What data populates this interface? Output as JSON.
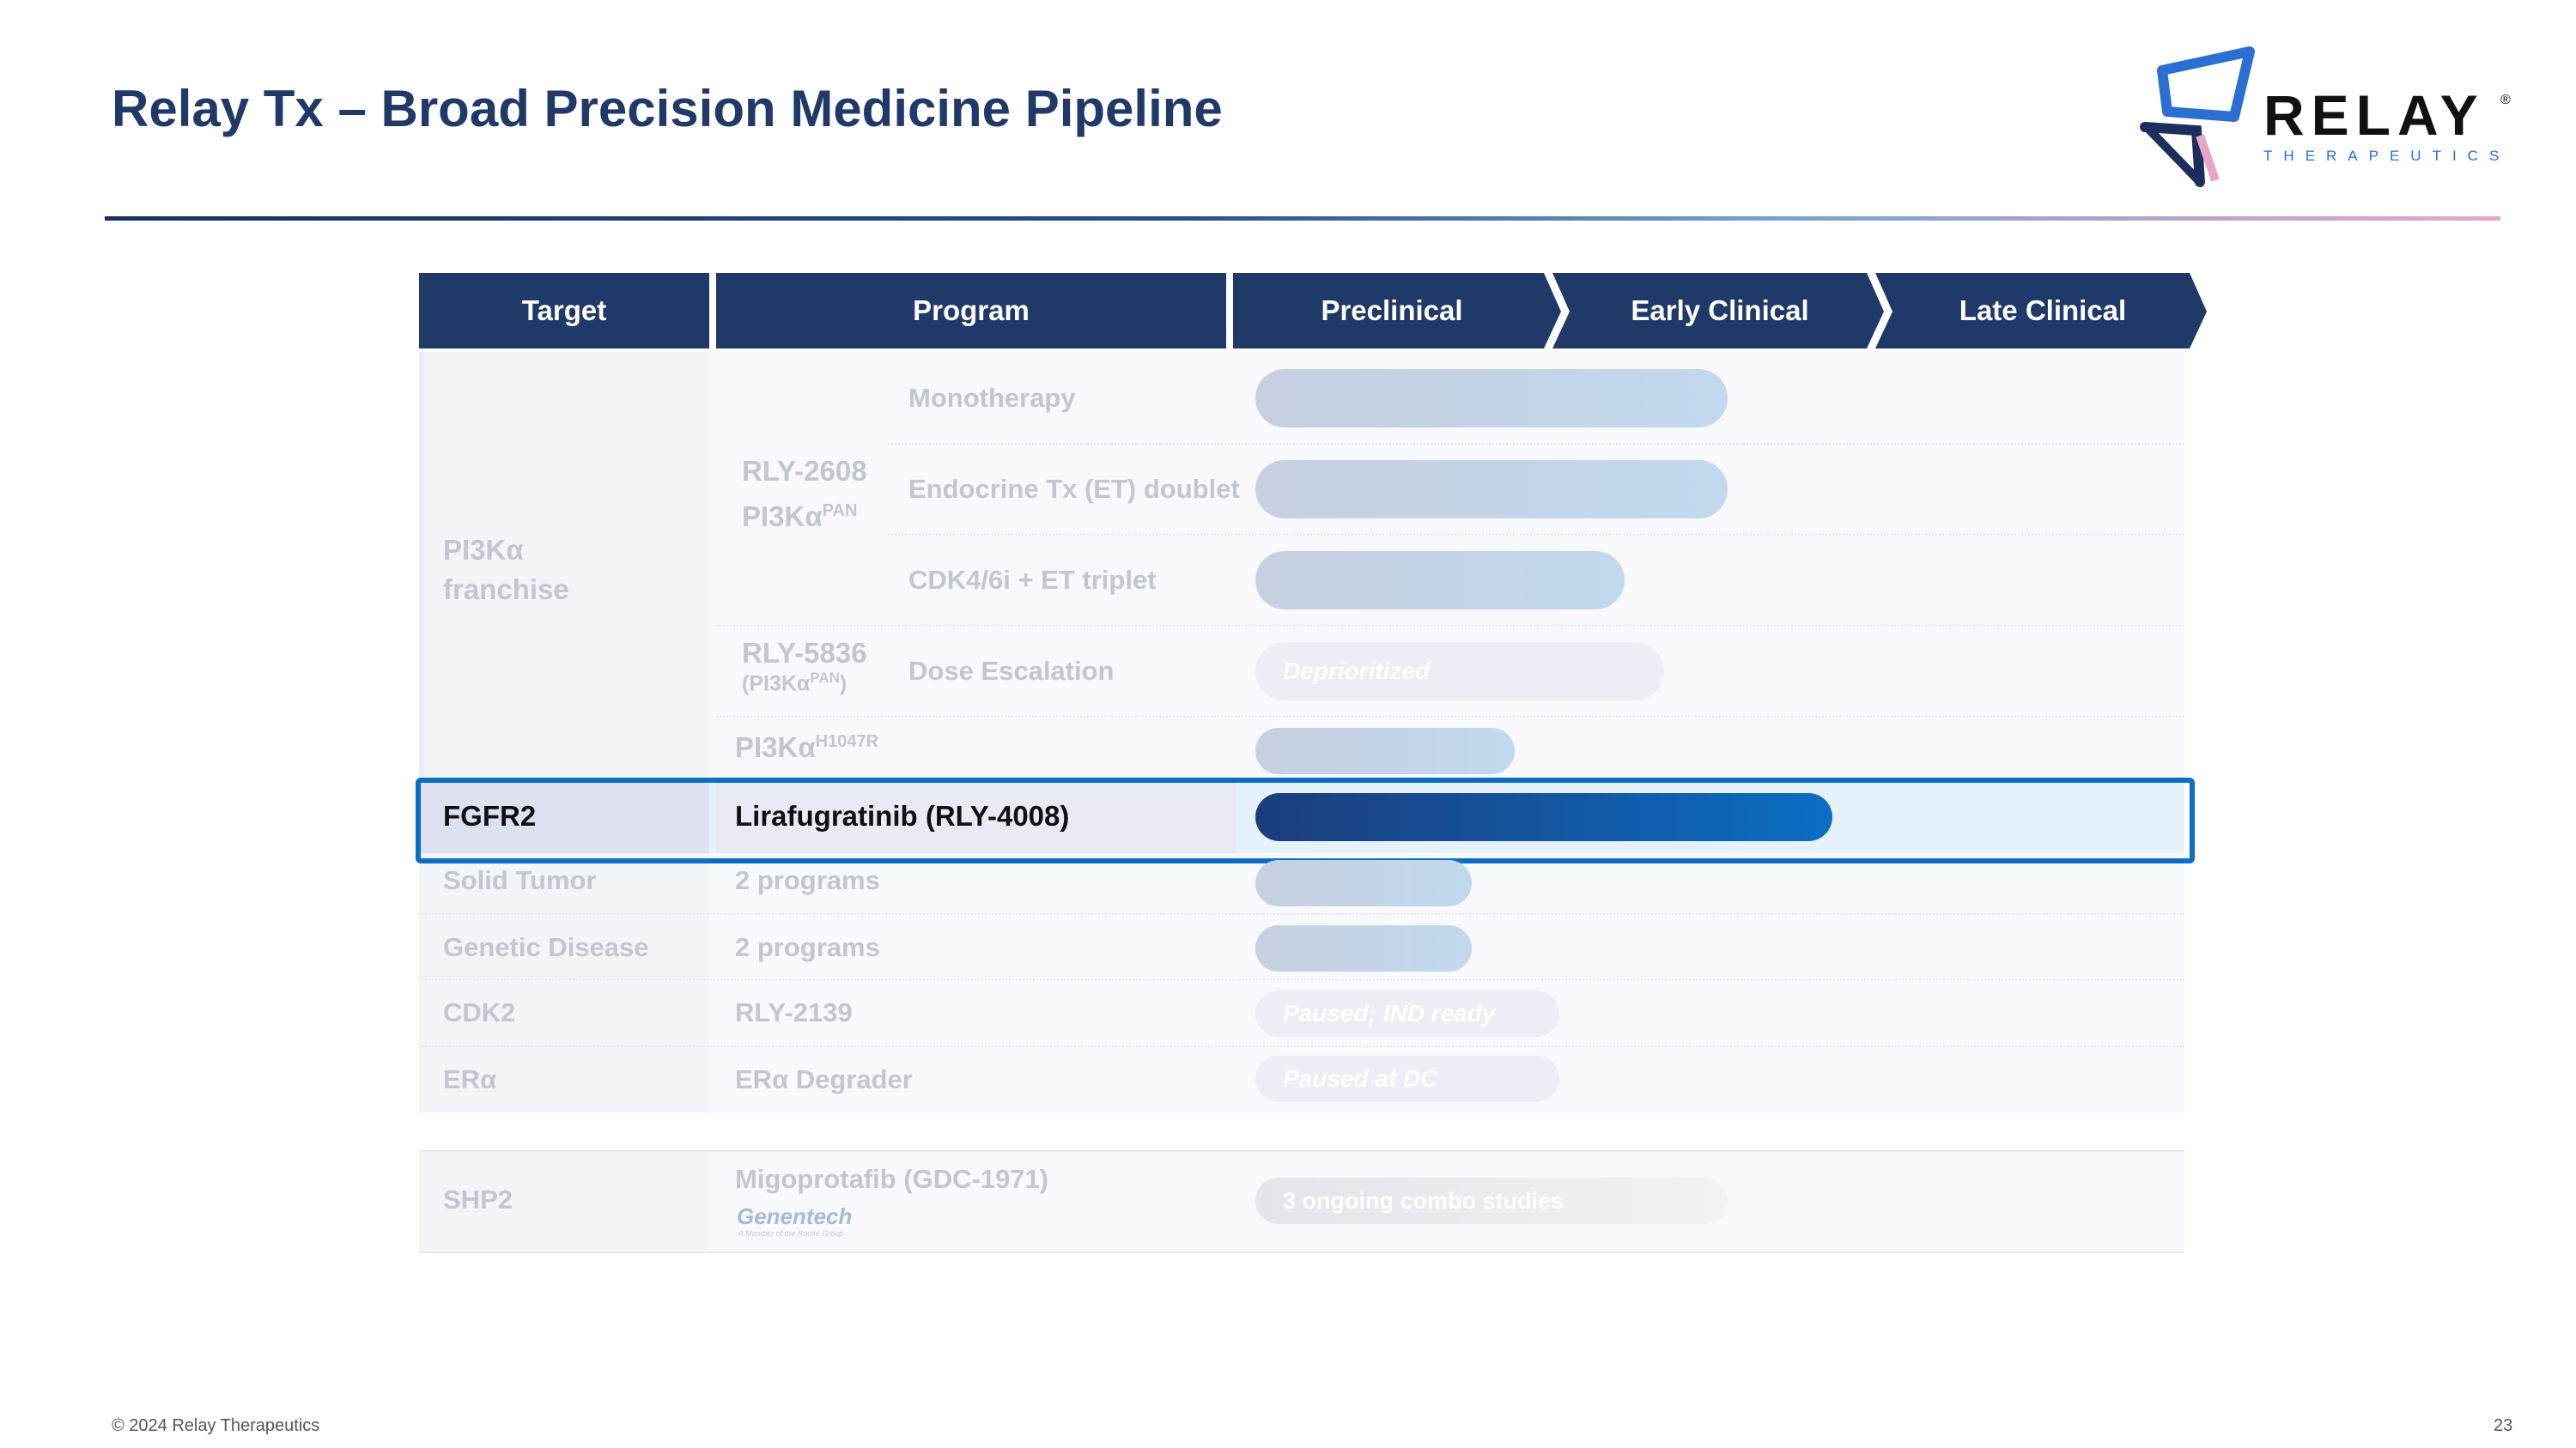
{
  "slide": {
    "title": "Relay Tx – Broad Precision Medicine Pipeline",
    "logo_word": "RELAY",
    "logo_reg": "®",
    "logo_sub": "THERAPEUTICS",
    "footer_left": "© 2024 Relay Therapeutics",
    "page_number": "23"
  },
  "header": {
    "target": "Target",
    "program": "Program",
    "preclinical": "Preclinical",
    "early": "Early Clinical",
    "late": "Late Clinical"
  },
  "pi3k": {
    "target_l1": "PI3Kα",
    "target_l2": "franchise",
    "rly2608_l1": "RLY-2608",
    "rly2608_l2": "PI3Kα",
    "rly2608_sup": "PAN",
    "mono": "Monotherapy",
    "et": "Endocrine Tx (ET) doublet",
    "cdk": "CDK4/6i + ET triplet",
    "rly5836_l1": "RLY-5836",
    "rly5836_l2a": "(PI3Kα",
    "rly5836_sup": "PAN",
    "rly5836_l2b": ")",
    "dose": "Dose Escalation",
    "deprioritized": "Deprioritized",
    "h1047r": "PI3Kα",
    "h1047r_sup": "H1047R"
  },
  "fgfr2": {
    "target": "FGFR2",
    "program": "Lirafugratinib (RLY-4008)"
  },
  "solid": {
    "target": "Solid Tumor",
    "program": "2 programs"
  },
  "genetic": {
    "target": "Genetic Disease",
    "program": "2 programs"
  },
  "cdk2": {
    "target": "CDK2",
    "program": "RLY-2139",
    "status": "Paused; IND ready"
  },
  "era": {
    "target": "ERα",
    "program": "ERα Degrader",
    "status": "Paused at DC"
  },
  "shp2": {
    "target": "SHP2",
    "program": "Migoprotafib (GDC-1971)",
    "partner": "Genentech",
    "partner_sub": "A Member of the Roche Group",
    "status": "3 ongoing combo studies"
  }
}
